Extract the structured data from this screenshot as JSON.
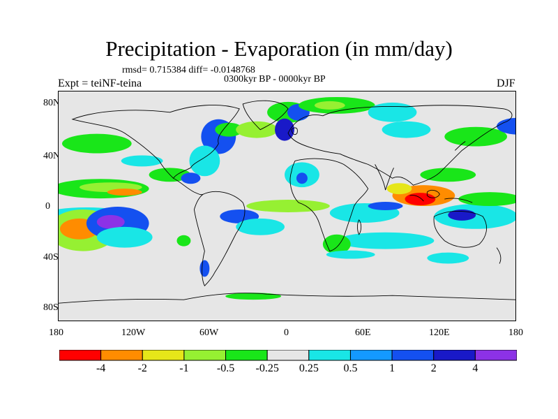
{
  "figure": {
    "title": "Precipitation - Evaporation (in mm/day)",
    "stats": "rmsd= 0.715384 diff= -0.0148768",
    "period": "0300kyr BP - 0000kyr BP",
    "experiment": "Expt = teiNF-teina",
    "season": "DJF"
  },
  "axes": {
    "lat_labels": [
      "80N",
      "40N",
      "0",
      "40S",
      "80S"
    ],
    "lon_labels": [
      "180",
      "120W",
      "60W",
      "0",
      "60E",
      "120E",
      "180"
    ]
  },
  "colorbar": {
    "labels": [
      "-4",
      "-2",
      "-1",
      "-0.5",
      "-0.25",
      "0.25",
      "0.5",
      "1",
      "2",
      "4"
    ],
    "colors": [
      "#ff0000",
      "#ff8c00",
      "#e6e619",
      "#96f032",
      "#19e619",
      "#e6e6e6",
      "#19e6e6",
      "#1499ff",
      "#1450f0",
      "#1919c8",
      "#8c32e6"
    ]
  },
  "palette": {
    "ocean_background": "#e6e6e6",
    "coastline": "#000000"
  }
}
